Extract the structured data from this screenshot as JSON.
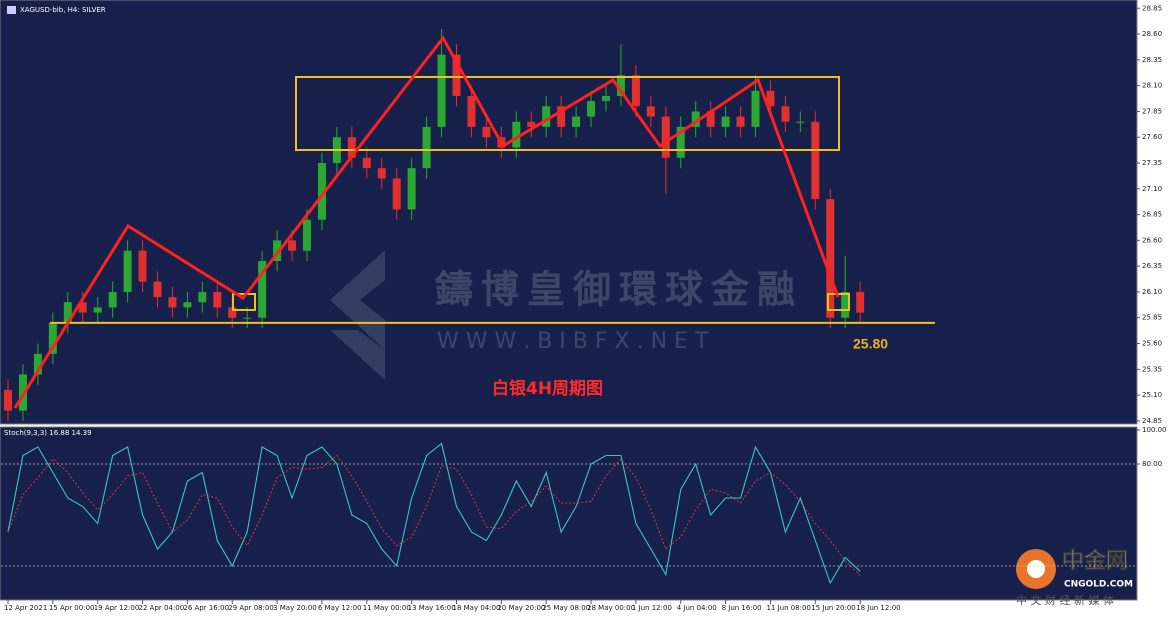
{
  "chart_data": {
    "type": "candlestick",
    "title": "XAGUSD-bib, H4:  SILVER",
    "annotation": "白银4H周期图",
    "support": {
      "value": 25.8,
      "label": "25.80"
    },
    "categories": [
      "12 Apr 2021",
      null,
      null,
      "15 Apr 00:00",
      null,
      null,
      "19 Apr 12:00",
      null,
      null,
      "22 Apr 04:00",
      null,
      null,
      "26 Apr 16:00",
      null,
      null,
      "29 Apr 08:00",
      null,
      null,
      "3 May 20:00",
      null,
      null,
      "6 May 12:00",
      null,
      null,
      "11 May 00:00",
      null,
      null,
      "13 May 16:00",
      null,
      null,
      "18 May 04:00",
      null,
      null,
      "20 May 20:00",
      null,
      null,
      "25 May 08:00",
      null,
      null,
      "28 May 00:00",
      null,
      null,
      "1 Jun 12:00",
      null,
      null,
      "4 Jun 04:00",
      null,
      null,
      "8 Jun 16:00",
      null,
      null,
      "11 Jun 08:00",
      null,
      null,
      "15 Jun 20:00",
      null,
      null,
      "18 Jun 12:00"
    ],
    "open": [
      25.15,
      24.95,
      25.3,
      25.5,
      25.8,
      26.0,
      25.9,
      25.95,
      26.1,
      26.5,
      26.2,
      26.05,
      25.95,
      26.0,
      26.1,
      25.95,
      25.85,
      25.85,
      26.4,
      26.6,
      26.5,
      26.8,
      27.35,
      27.6,
      27.4,
      27.3,
      27.2,
      26.9,
      27.3,
      27.7,
      28.4,
      28.0,
      27.7,
      27.6,
      27.5,
      27.75,
      27.7,
      27.9,
      27.7,
      27.8,
      27.95,
      28.0,
      28.2,
      27.9,
      27.8,
      27.4,
      27.7,
      27.85,
      27.7,
      27.8,
      27.7,
      28.05,
      27.9,
      27.75,
      27.75,
      27.0,
      25.85,
      26.1
    ],
    "high": [
      25.25,
      25.4,
      25.6,
      25.9,
      26.1,
      26.1,
      26.05,
      26.2,
      26.6,
      26.6,
      26.3,
      26.15,
      26.1,
      26.2,
      26.2,
      26.05,
      25.95,
      26.5,
      26.7,
      26.7,
      26.9,
      27.45,
      27.7,
      27.7,
      27.5,
      27.4,
      27.3,
      27.4,
      27.8,
      28.65,
      28.5,
      28.1,
      27.8,
      27.7,
      27.85,
      27.85,
      28.0,
      28.0,
      27.9,
      28.05,
      28.1,
      28.5,
      28.3,
      28.0,
      27.9,
      27.8,
      27.95,
      27.95,
      27.9,
      27.9,
      28.2,
      28.15,
      28.0,
      27.85,
      27.85,
      27.1,
      26.45,
      26.2
    ],
    "low": [
      24.85,
      24.85,
      25.2,
      25.4,
      25.7,
      25.8,
      25.8,
      25.85,
      26.0,
      26.1,
      25.95,
      25.85,
      25.85,
      25.9,
      25.85,
      25.75,
      25.75,
      25.75,
      26.3,
      26.4,
      26.4,
      26.7,
      27.25,
      27.3,
      27.2,
      27.1,
      26.8,
      26.8,
      27.2,
      27.6,
      27.9,
      27.6,
      27.5,
      27.4,
      27.4,
      27.6,
      27.6,
      27.6,
      27.6,
      27.7,
      27.85,
      27.9,
      27.8,
      27.7,
      27.05,
      27.3,
      27.6,
      27.6,
      27.6,
      27.6,
      27.6,
      27.8,
      27.65,
      27.65,
      26.9,
      25.75,
      25.75,
      25.8
    ],
    "close": [
      24.95,
      25.3,
      25.5,
      25.8,
      26.0,
      25.9,
      25.95,
      26.1,
      26.5,
      26.2,
      26.05,
      25.95,
      26.0,
      26.1,
      25.95,
      25.85,
      25.85,
      26.4,
      26.6,
      26.5,
      26.8,
      27.35,
      27.6,
      27.4,
      27.3,
      27.2,
      26.9,
      27.3,
      27.7,
      28.4,
      28.0,
      27.7,
      27.6,
      27.5,
      27.75,
      27.7,
      27.9,
      27.7,
      27.8,
      27.95,
      28.0,
      28.2,
      27.9,
      27.8,
      27.4,
      27.7,
      27.85,
      27.7,
      27.8,
      27.7,
      28.05,
      27.9,
      27.75,
      27.75,
      27.0,
      25.85,
      26.1,
      25.9
    ],
    "up_color": "#2aa832",
    "down_color": "#e03030",
    "ylim": [
      24.82,
      28.93
    ],
    "yticks": [
      {
        "value": 28.85,
        "label": "28.85"
      },
      {
        "value": 28.6,
        "label": "28.60"
      },
      {
        "value": 28.35,
        "label": "28.35"
      },
      {
        "value": 28.1,
        "label": "28.10"
      },
      {
        "value": 27.85,
        "label": "27.85"
      },
      {
        "value": 27.6,
        "label": "27.60"
      },
      {
        "value": 27.35,
        "label": "27.35"
      },
      {
        "value": 27.1,
        "label": "27.10"
      },
      {
        "value": 26.85,
        "label": "26.85"
      },
      {
        "value": 26.6,
        "label": "26.60"
      },
      {
        "value": 26.35,
        "label": "26.35"
      },
      {
        "value": 26.1,
        "label": "26.10"
      },
      {
        "value": 25.85,
        "label": "25.85"
      },
      {
        "value": 25.6,
        "label": "25.60"
      },
      {
        "value": 25.35,
        "label": "25.35"
      },
      {
        "value": 25.1,
        "label": "25.10"
      },
      {
        "value": 24.85,
        "label": "24.85"
      }
    ],
    "oscillator": {
      "label": "Stoch(9,3,3) 16.88 14.39",
      "ylim": [
        0,
        100
      ],
      "yticks": [
        {
          "value": 100,
          "label": "100.00"
        },
        {
          "value": 80,
          "label": "80.00"
        }
      ],
      "levels": [
        80,
        20
      ],
      "series": [
        {
          "name": "Main",
          "color": "#3fc4c4",
          "values": [
            40,
            85,
            90,
            75,
            60,
            55,
            45,
            85,
            90,
            50,
            30,
            40,
            70,
            75,
            35,
            20,
            40,
            90,
            85,
            60,
            85,
            90,
            80,
            50,
            45,
            30,
            20,
            60,
            85,
            92,
            55,
            40,
            35,
            50,
            70,
            55,
            75,
            40,
            55,
            80,
            85,
            85,
            45,
            30,
            15,
            65,
            80,
            50,
            60,
            60,
            90,
            75,
            40,
            60,
            35,
            10,
            25,
            16.88
          ]
        },
        {
          "name": "Signal",
          "color": "#e04040",
          "values": [
            40,
            62,
            72,
            83,
            75,
            63,
            53,
            62,
            73,
            75,
            57,
            40,
            47,
            62,
            60,
            43,
            32,
            50,
            72,
            78,
            77,
            78,
            85,
            73,
            58,
            42,
            32,
            37,
            55,
            79,
            77,
            62,
            43,
            42,
            52,
            58,
            67,
            57,
            57,
            58,
            73,
            83,
            72,
            53,
            30,
            37,
            53,
            65,
            63,
            57,
            70,
            75,
            68,
            58,
            45,
            35,
            23,
            14.39
          ]
        }
      ]
    }
  },
  "watermark": {
    "brand": "鑄博皇御環球金融",
    "url": "W W W . B I B F X . N E T"
  },
  "logo": {
    "name": "中金网",
    "domain": "CNGOLD.COM",
    "tagline": "中 文 财 经 新 媒 体"
  }
}
